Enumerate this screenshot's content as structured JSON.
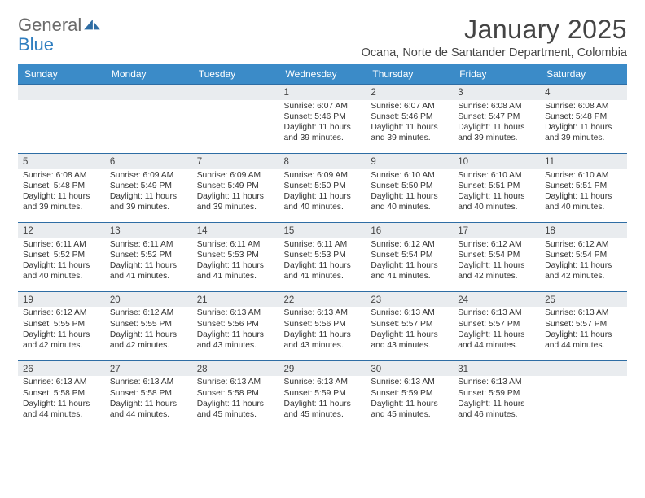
{
  "brand": {
    "word1": "General",
    "word2": "Blue"
  },
  "title": "January 2025",
  "location": "Ocana, Norte de Santander Department, Colombia",
  "colors": {
    "header_bg": "#3b8bc8",
    "daynum_bg": "#e9ecef",
    "line": "#2e6da4",
    "brand_blue": "#2f7ec0",
    "text": "#333333"
  },
  "dow": [
    "Sunday",
    "Monday",
    "Tuesday",
    "Wednesday",
    "Thursday",
    "Friday",
    "Saturday"
  ],
  "weeks": [
    {
      "nums": [
        "",
        "",
        "",
        "1",
        "2",
        "3",
        "4"
      ],
      "cells": [
        null,
        null,
        null,
        {
          "sr": "6:07 AM",
          "ss": "5:46 PM",
          "dl": "11 hours and 39 minutes."
        },
        {
          "sr": "6:07 AM",
          "ss": "5:46 PM",
          "dl": "11 hours and 39 minutes."
        },
        {
          "sr": "6:08 AM",
          "ss": "5:47 PM",
          "dl": "11 hours and 39 minutes."
        },
        {
          "sr": "6:08 AM",
          "ss": "5:48 PM",
          "dl": "11 hours and 39 minutes."
        }
      ]
    },
    {
      "nums": [
        "5",
        "6",
        "7",
        "8",
        "9",
        "10",
        "11"
      ],
      "cells": [
        {
          "sr": "6:08 AM",
          "ss": "5:48 PM",
          "dl": "11 hours and 39 minutes."
        },
        {
          "sr": "6:09 AM",
          "ss": "5:49 PM",
          "dl": "11 hours and 39 minutes."
        },
        {
          "sr": "6:09 AM",
          "ss": "5:49 PM",
          "dl": "11 hours and 39 minutes."
        },
        {
          "sr": "6:09 AM",
          "ss": "5:50 PM",
          "dl": "11 hours and 40 minutes."
        },
        {
          "sr": "6:10 AM",
          "ss": "5:50 PM",
          "dl": "11 hours and 40 minutes."
        },
        {
          "sr": "6:10 AM",
          "ss": "5:51 PM",
          "dl": "11 hours and 40 minutes."
        },
        {
          "sr": "6:10 AM",
          "ss": "5:51 PM",
          "dl": "11 hours and 40 minutes."
        }
      ]
    },
    {
      "nums": [
        "12",
        "13",
        "14",
        "15",
        "16",
        "17",
        "18"
      ],
      "cells": [
        {
          "sr": "6:11 AM",
          "ss": "5:52 PM",
          "dl": "11 hours and 40 minutes."
        },
        {
          "sr": "6:11 AM",
          "ss": "5:52 PM",
          "dl": "11 hours and 41 minutes."
        },
        {
          "sr": "6:11 AM",
          "ss": "5:53 PM",
          "dl": "11 hours and 41 minutes."
        },
        {
          "sr": "6:11 AM",
          "ss": "5:53 PM",
          "dl": "11 hours and 41 minutes."
        },
        {
          "sr": "6:12 AM",
          "ss": "5:54 PM",
          "dl": "11 hours and 41 minutes."
        },
        {
          "sr": "6:12 AM",
          "ss": "5:54 PM",
          "dl": "11 hours and 42 minutes."
        },
        {
          "sr": "6:12 AM",
          "ss": "5:54 PM",
          "dl": "11 hours and 42 minutes."
        }
      ]
    },
    {
      "nums": [
        "19",
        "20",
        "21",
        "22",
        "23",
        "24",
        "25"
      ],
      "cells": [
        {
          "sr": "6:12 AM",
          "ss": "5:55 PM",
          "dl": "11 hours and 42 minutes."
        },
        {
          "sr": "6:12 AM",
          "ss": "5:55 PM",
          "dl": "11 hours and 42 minutes."
        },
        {
          "sr": "6:13 AM",
          "ss": "5:56 PM",
          "dl": "11 hours and 43 minutes."
        },
        {
          "sr": "6:13 AM",
          "ss": "5:56 PM",
          "dl": "11 hours and 43 minutes."
        },
        {
          "sr": "6:13 AM",
          "ss": "5:57 PM",
          "dl": "11 hours and 43 minutes."
        },
        {
          "sr": "6:13 AM",
          "ss": "5:57 PM",
          "dl": "11 hours and 44 minutes."
        },
        {
          "sr": "6:13 AM",
          "ss": "5:57 PM",
          "dl": "11 hours and 44 minutes."
        }
      ]
    },
    {
      "nums": [
        "26",
        "27",
        "28",
        "29",
        "30",
        "31",
        ""
      ],
      "cells": [
        {
          "sr": "6:13 AM",
          "ss": "5:58 PM",
          "dl": "11 hours and 44 minutes."
        },
        {
          "sr": "6:13 AM",
          "ss": "5:58 PM",
          "dl": "11 hours and 44 minutes."
        },
        {
          "sr": "6:13 AM",
          "ss": "5:58 PM",
          "dl": "11 hours and 45 minutes."
        },
        {
          "sr": "6:13 AM",
          "ss": "5:59 PM",
          "dl": "11 hours and 45 minutes."
        },
        {
          "sr": "6:13 AM",
          "ss": "5:59 PM",
          "dl": "11 hours and 45 minutes."
        },
        {
          "sr": "6:13 AM",
          "ss": "5:59 PM",
          "dl": "11 hours and 46 minutes."
        },
        null
      ]
    }
  ],
  "labels": {
    "sunrise": "Sunrise:",
    "sunset": "Sunset:",
    "daylight": "Daylight:"
  }
}
